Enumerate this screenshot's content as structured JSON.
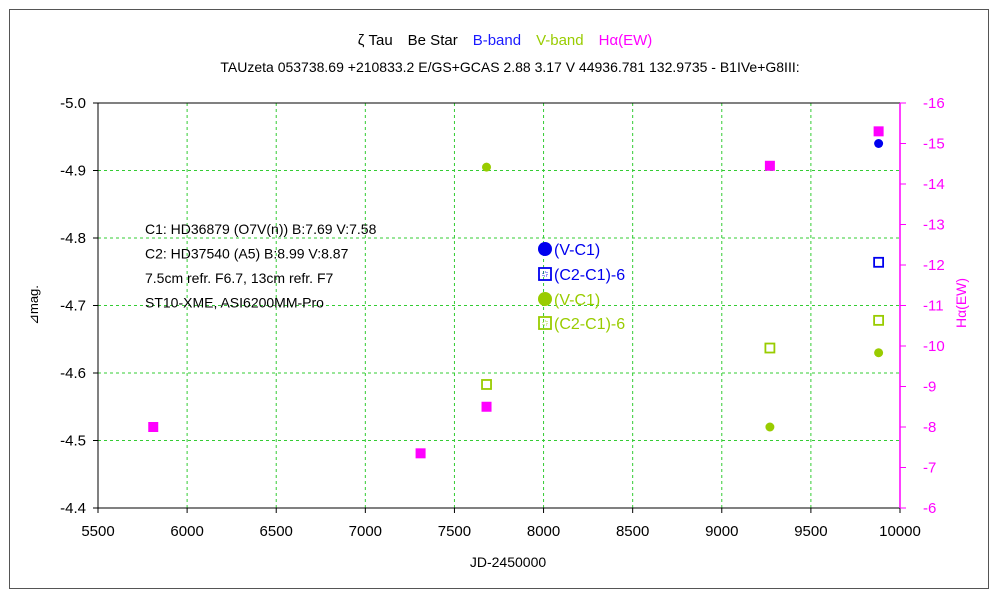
{
  "chart_data": {
    "type": "scatter",
    "title_parts": [
      {
        "text": "ζ Tau",
        "color": "#000000"
      },
      {
        "text": "Be Star",
        "color": "#000000"
      },
      {
        "text": "B-band",
        "color": "#1a1aff"
      },
      {
        "text": "V-band",
        "color": "#99cc00"
      },
      {
        "text": "Hα(EW)",
        "color": "#ff00ff"
      }
    ],
    "subtitle": "TAUzeta 053738.69 +210833.2 E/GS+GCAS 2.88 3.17 V 44936.781 132.9735 - B1IVe+G8III:",
    "xlabel": "JD-2450000",
    "ylabel": "⊿mag.",
    "ylabel_right": "Hα(EW)",
    "xlim": [
      5500,
      10000
    ],
    "ylim": [
      -4.4,
      -5.0
    ],
    "ylim_right": [
      -6,
      -16
    ],
    "x_ticks": [
      5500,
      6000,
      6500,
      7000,
      7500,
      8000,
      8500,
      9000,
      9500,
      10000
    ],
    "y_ticks": [
      -5.0,
      -4.9,
      -4.8,
      -4.7,
      -4.6,
      -4.5,
      -4.4
    ],
    "y_tick_labels": [
      "-5.0",
      "-4.9",
      "-4.8",
      "-4.7",
      "-4.6",
      "-4.5",
      "-4.4"
    ],
    "y_right_ticks": [
      -16,
      -15,
      -14,
      -13,
      -12,
      -11,
      -10,
      -9,
      -8,
      -7,
      -6
    ],
    "grid": true,
    "annotation_lines": [
      "C1: HD36879 (O7V(n))  B:7.69  V:7.58",
      "C2: HD37540 (A5)  B:8.99  V:8.87",
      "7.5cm refr. F6.7,  13cm refr.  F7",
      "ST10-XME,  ASI6200MM-Pro"
    ],
    "legend": [
      {
        "label": "(V-C1)",
        "marker": "circle",
        "color": "#0000ee"
      },
      {
        "label": "(C2-C1)-6",
        "marker": "square-open",
        "color": "#0000ee"
      },
      {
        "label": "(V-C1)",
        "marker": "circle",
        "color": "#99cc00"
      },
      {
        "label": "(C2-C1)-6",
        "marker": "square-open",
        "color": "#99cc00"
      }
    ],
    "series": [
      {
        "band": "B-band",
        "kind": "(V-C1)",
        "marker": "circle",
        "color": "#0000ee",
        "axis": "left",
        "points": [
          {
            "x": 9880,
            "y": -4.94
          }
        ]
      },
      {
        "band": "B-band",
        "kind": "(C2-C1)-6",
        "marker": "square-open",
        "color": "#0000ee",
        "axis": "left",
        "points": [
          {
            "x": 9880,
            "y": -4.764
          }
        ]
      },
      {
        "band": "V-band",
        "kind": "(V-C1)",
        "marker": "circle",
        "color": "#99cc00",
        "axis": "left",
        "points": [
          {
            "x": 7680,
            "y": -4.905
          },
          {
            "x": 9270,
            "y": -4.52
          },
          {
            "x": 9880,
            "y": -4.63
          }
        ]
      },
      {
        "band": "V-band",
        "kind": "(C2-C1)-6",
        "marker": "square-open",
        "color": "#99cc00",
        "axis": "left",
        "points": [
          {
            "x": 7680,
            "y": -4.583
          },
          {
            "x": 9270,
            "y": -4.637
          },
          {
            "x": 9880,
            "y": -4.678
          }
        ]
      },
      {
        "band": "Hα(EW)",
        "kind": "EW",
        "marker": "square-filled",
        "color": "#ff00ff",
        "axis": "right",
        "points": [
          {
            "x": 5810,
            "y": -8.0
          },
          {
            "x": 7310,
            "y": -7.35
          },
          {
            "x": 7680,
            "y": -8.5
          },
          {
            "x": 9270,
            "y": -14.45
          },
          {
            "x": 9880,
            "y": -15.3
          }
        ]
      }
    ]
  }
}
